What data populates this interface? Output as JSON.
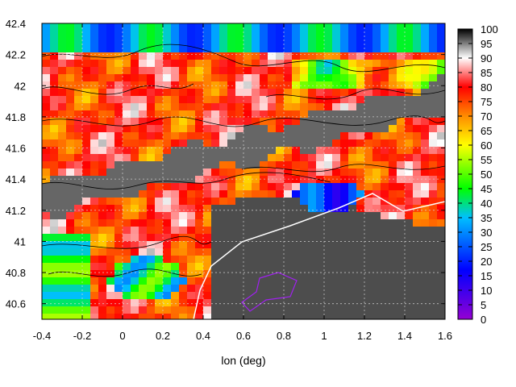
{
  "chart_data": {
    "type": "heatmap",
    "xlabel": "lon (deg)",
    "ylabel": "",
    "title": "",
    "xlim": [
      -0.4,
      1.6
    ],
    "ylim": [
      40.5,
      42.4
    ],
    "x_ticks": [
      "-0.4",
      "-0.2",
      "0",
      "0.2",
      "0.4",
      "0.6",
      "0.8",
      "1",
      "1.2",
      "1.4",
      "1.6"
    ],
    "y_ticks": [
      "40.6",
      "40.8",
      "41",
      "41.2",
      "41.4",
      "41.6",
      "41.8",
      "42",
      "42.2",
      "42.4"
    ],
    "colorbar": {
      "range": [
        0,
        100
      ],
      "ticks": [
        "0",
        "5",
        "10",
        "15",
        "20",
        "25",
        "30",
        "35",
        "40",
        "45",
        "50",
        "55",
        "60",
        "65",
        "70",
        "75",
        "80",
        "85",
        "90",
        "95",
        "100"
      ],
      "palette": [
        "#9400d3",
        "#0000ff",
        "#00bfff",
        "#00ff00",
        "#ffff00",
        "#ff8c00",
        "#ff0000",
        "#ffffff",
        "#000000"
      ]
    },
    "grid": true,
    "contours": true,
    "coastline_color": "#ffffff",
    "overlay_outline_color": "#a020f0"
  }
}
